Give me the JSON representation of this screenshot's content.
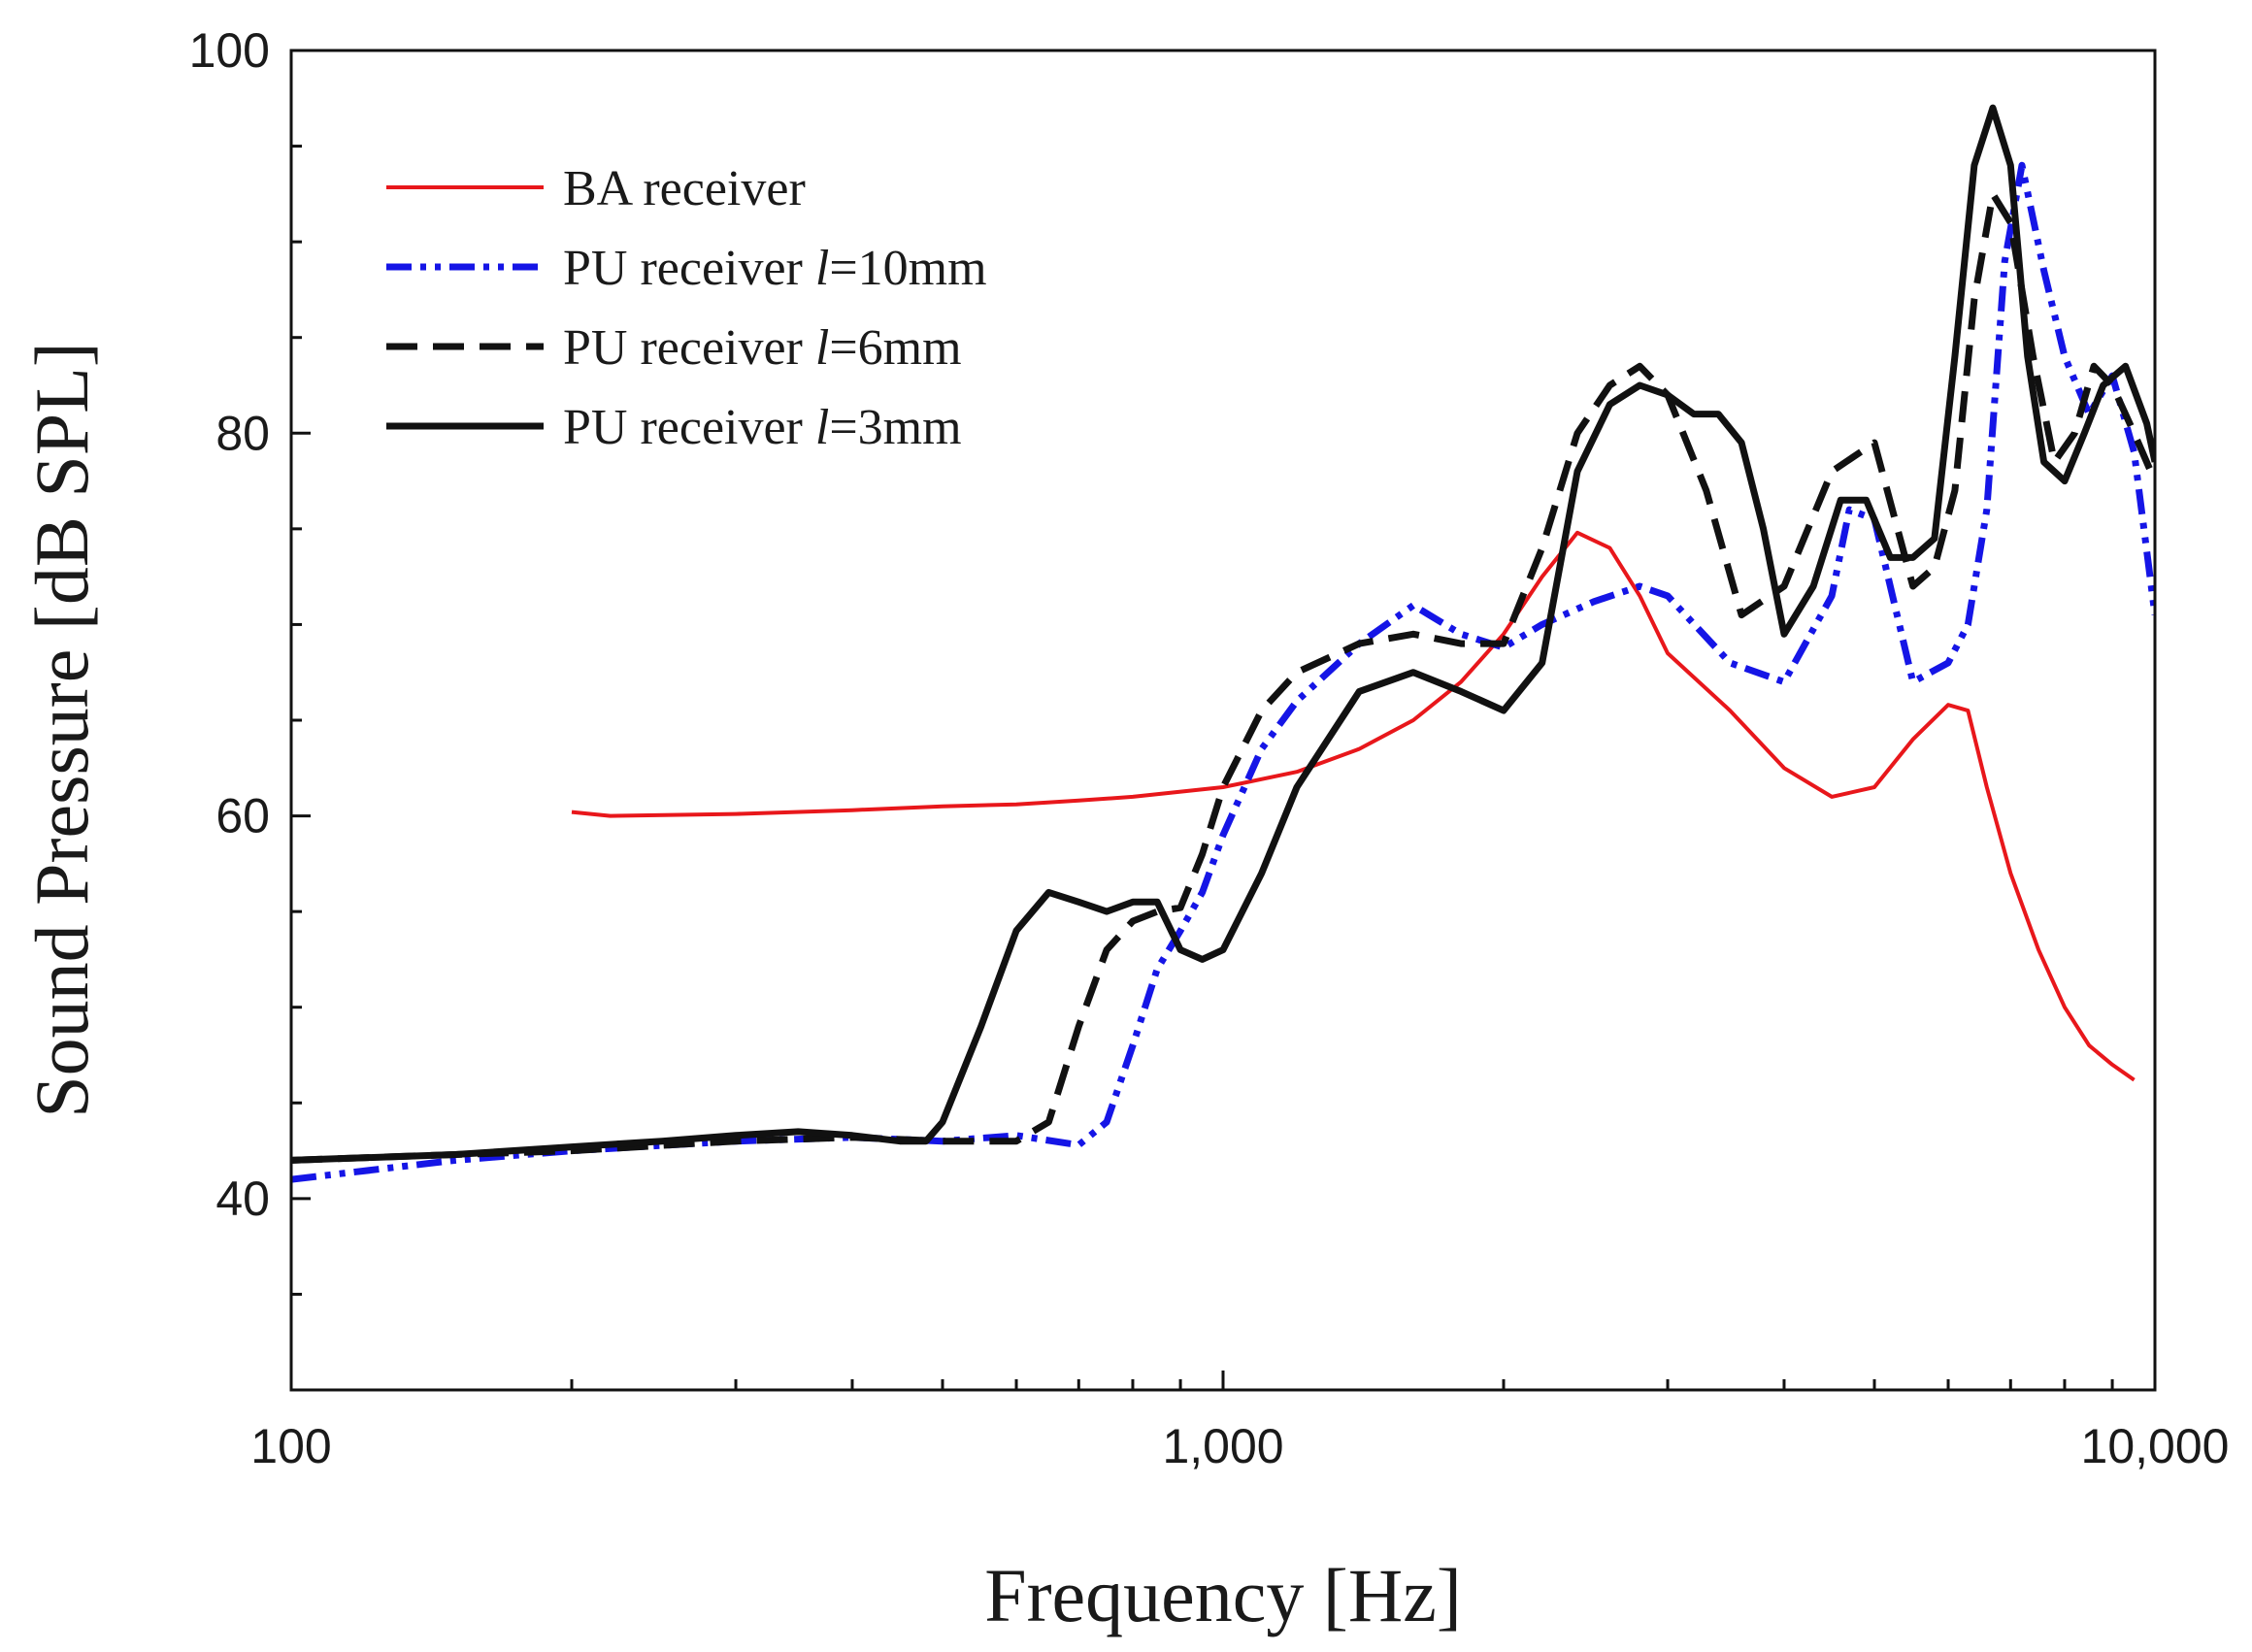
{
  "chart_data": {
    "type": "line",
    "xlabel": "Frequency [Hz]",
    "ylabel": "Sound Pressure [dB SPL]",
    "x_scale": "log",
    "xlim": [
      100,
      10000
    ],
    "ylim": [
      30,
      100
    ],
    "x_ticks": [
      {
        "value": 100,
        "label": "100"
      },
      {
        "value": 1000,
        "label": "1,000"
      },
      {
        "value": 10000,
        "label": "10,000"
      }
    ],
    "y_ticks": [
      {
        "value": 40,
        "label": "40"
      },
      {
        "value": 60,
        "label": "60"
      },
      {
        "value": 80,
        "label": "80"
      },
      {
        "value": 100,
        "label": "100"
      }
    ],
    "y_minor_step": 5,
    "grid": false,
    "legend_position": "top-left",
    "series": [
      {
        "name": "BA receiver",
        "legend_prefix": "BA receiver",
        "legend_italic": "",
        "legend_suffix": "",
        "color": "#e8171b",
        "dash": "solid",
        "width": 4,
        "x": [
          200,
          220,
          300,
          400,
          500,
          600,
          700,
          800,
          1000,
          1200,
          1400,
          1600,
          1800,
          2000,
          2200,
          2400,
          2600,
          2800,
          3000,
          3500,
          4000,
          4500,
          5000,
          5500,
          6000,
          6300,
          6600,
          7000,
          7500,
          8000,
          8500,
          9000,
          9500
        ],
        "y": [
          60.2,
          60.0,
          60.1,
          60.3,
          60.5,
          60.6,
          60.8,
          61.0,
          61.5,
          62.3,
          63.5,
          65.0,
          67.0,
          69.5,
          72.5,
          74.8,
          74.0,
          71.5,
          68.5,
          65.5,
          62.5,
          61.0,
          61.5,
          64.0,
          65.8,
          65.5,
          61.5,
          57.0,
          53.0,
          50.0,
          48.0,
          47.0,
          46.2
        ]
      },
      {
        "name": "PU receiver l=10mm",
        "legend_prefix": "PU receiver ",
        "legend_italic": "l",
        "legend_suffix": "=10mm",
        "color": "#1515e6",
        "dash": "dashdotdot",
        "width": 7,
        "x": [
          100,
          150,
          200,
          300,
          400,
          500,
          600,
          700,
          750,
          800,
          850,
          900,
          950,
          1000,
          1100,
          1200,
          1400,
          1600,
          1800,
          2000,
          2200,
          2500,
          2800,
          3000,
          3500,
          4000,
          4500,
          4700,
          5000,
          5500,
          6000,
          6300,
          6600,
          6900,
          7200,
          7600,
          8000,
          8500,
          9000,
          9500,
          10000
        ],
        "y": [
          41.0,
          42.0,
          42.5,
          43.0,
          43.2,
          43.0,
          43.3,
          42.8,
          44.0,
          48.0,
          52.0,
          54.0,
          56.0,
          59.0,
          63.5,
          66.0,
          69.0,
          71.0,
          69.5,
          68.8,
          70.0,
          71.2,
          72.0,
          71.5,
          68.0,
          67.0,
          71.5,
          76.0,
          75.5,
          67.0,
          68.0,
          70.0,
          76.0,
          89.0,
          94.0,
          88.5,
          84.0,
          81.0,
          83.0,
          79.0,
          70.5
        ]
      },
      {
        "name": "PU receiver l=6mm",
        "legend_prefix": "PU receiver ",
        "legend_italic": "l",
        "legend_suffix": "=6mm",
        "color": "#111111",
        "dash": "dashed",
        "width": 7,
        "x": [
          100,
          150,
          200,
          300,
          400,
          500,
          600,
          650,
          700,
          750,
          800,
          850,
          900,
          950,
          1000,
          1100,
          1200,
          1400,
          1600,
          1800,
          2000,
          2200,
          2400,
          2600,
          2800,
          3000,
          3300,
          3600,
          4000,
          4500,
          5000,
          5500,
          5800,
          6100,
          6400,
          6700,
          7000,
          7400,
          7800,
          8200,
          8600,
          9000,
          9500,
          10000
        ],
        "y": [
          42.0,
          42.3,
          42.5,
          43.0,
          43.2,
          43.0,
          43.0,
          44.0,
          49.0,
          53.0,
          54.5,
          55.0,
          55.2,
          58.0,
          61.5,
          65.5,
          67.5,
          69.0,
          69.5,
          69.0,
          69.0,
          74.0,
          80.0,
          82.5,
          83.5,
          82.0,
          77.0,
          70.5,
          72.0,
          78.0,
          79.5,
          72.0,
          73.0,
          77.0,
          87.0,
          92.5,
          91.0,
          84.0,
          78.5,
          80.0,
          83.5,
          82.5,
          80.0,
          77.5
        ]
      },
      {
        "name": "PU receiver l=3mm",
        "legend_prefix": "PU receiver ",
        "legend_italic": "l",
        "legend_suffix": "=3mm",
        "color": "#111111",
        "dash": "solid",
        "width": 7,
        "x": [
          100,
          150,
          200,
          250,
          300,
          350,
          400,
          450,
          480,
          500,
          550,
          600,
          650,
          700,
          750,
          800,
          850,
          900,
          950,
          1000,
          1100,
          1200,
          1400,
          1600,
          1800,
          2000,
          2200,
          2400,
          2600,
          2800,
          3000,
          3200,
          3400,
          3600,
          3800,
          4000,
          4300,
          4600,
          4900,
          5200,
          5500,
          5800,
          6100,
          6400,
          6700,
          7000,
          7300,
          7600,
          8000,
          8400,
          8800,
          9300,
          9800,
          10000
        ],
        "y": [
          42.0,
          42.3,
          42.7,
          43.0,
          43.3,
          43.5,
          43.3,
          43.0,
          43.0,
          44.0,
          49.0,
          54.0,
          56.0,
          55.5,
          55.0,
          55.5,
          55.5,
          53.0,
          52.5,
          53.0,
          57.0,
          61.5,
          66.5,
          67.5,
          66.5,
          65.5,
          68.0,
          78.0,
          81.5,
          82.5,
          82.0,
          81.0,
          81.0,
          79.5,
          75.0,
          69.5,
          72.0,
          76.5,
          76.5,
          73.5,
          73.5,
          74.5,
          84.0,
          94.0,
          97.0,
          94.0,
          84.0,
          78.5,
          77.5,
          80.0,
          82.5,
          83.5,
          80.5,
          78.5
        ]
      }
    ]
  }
}
